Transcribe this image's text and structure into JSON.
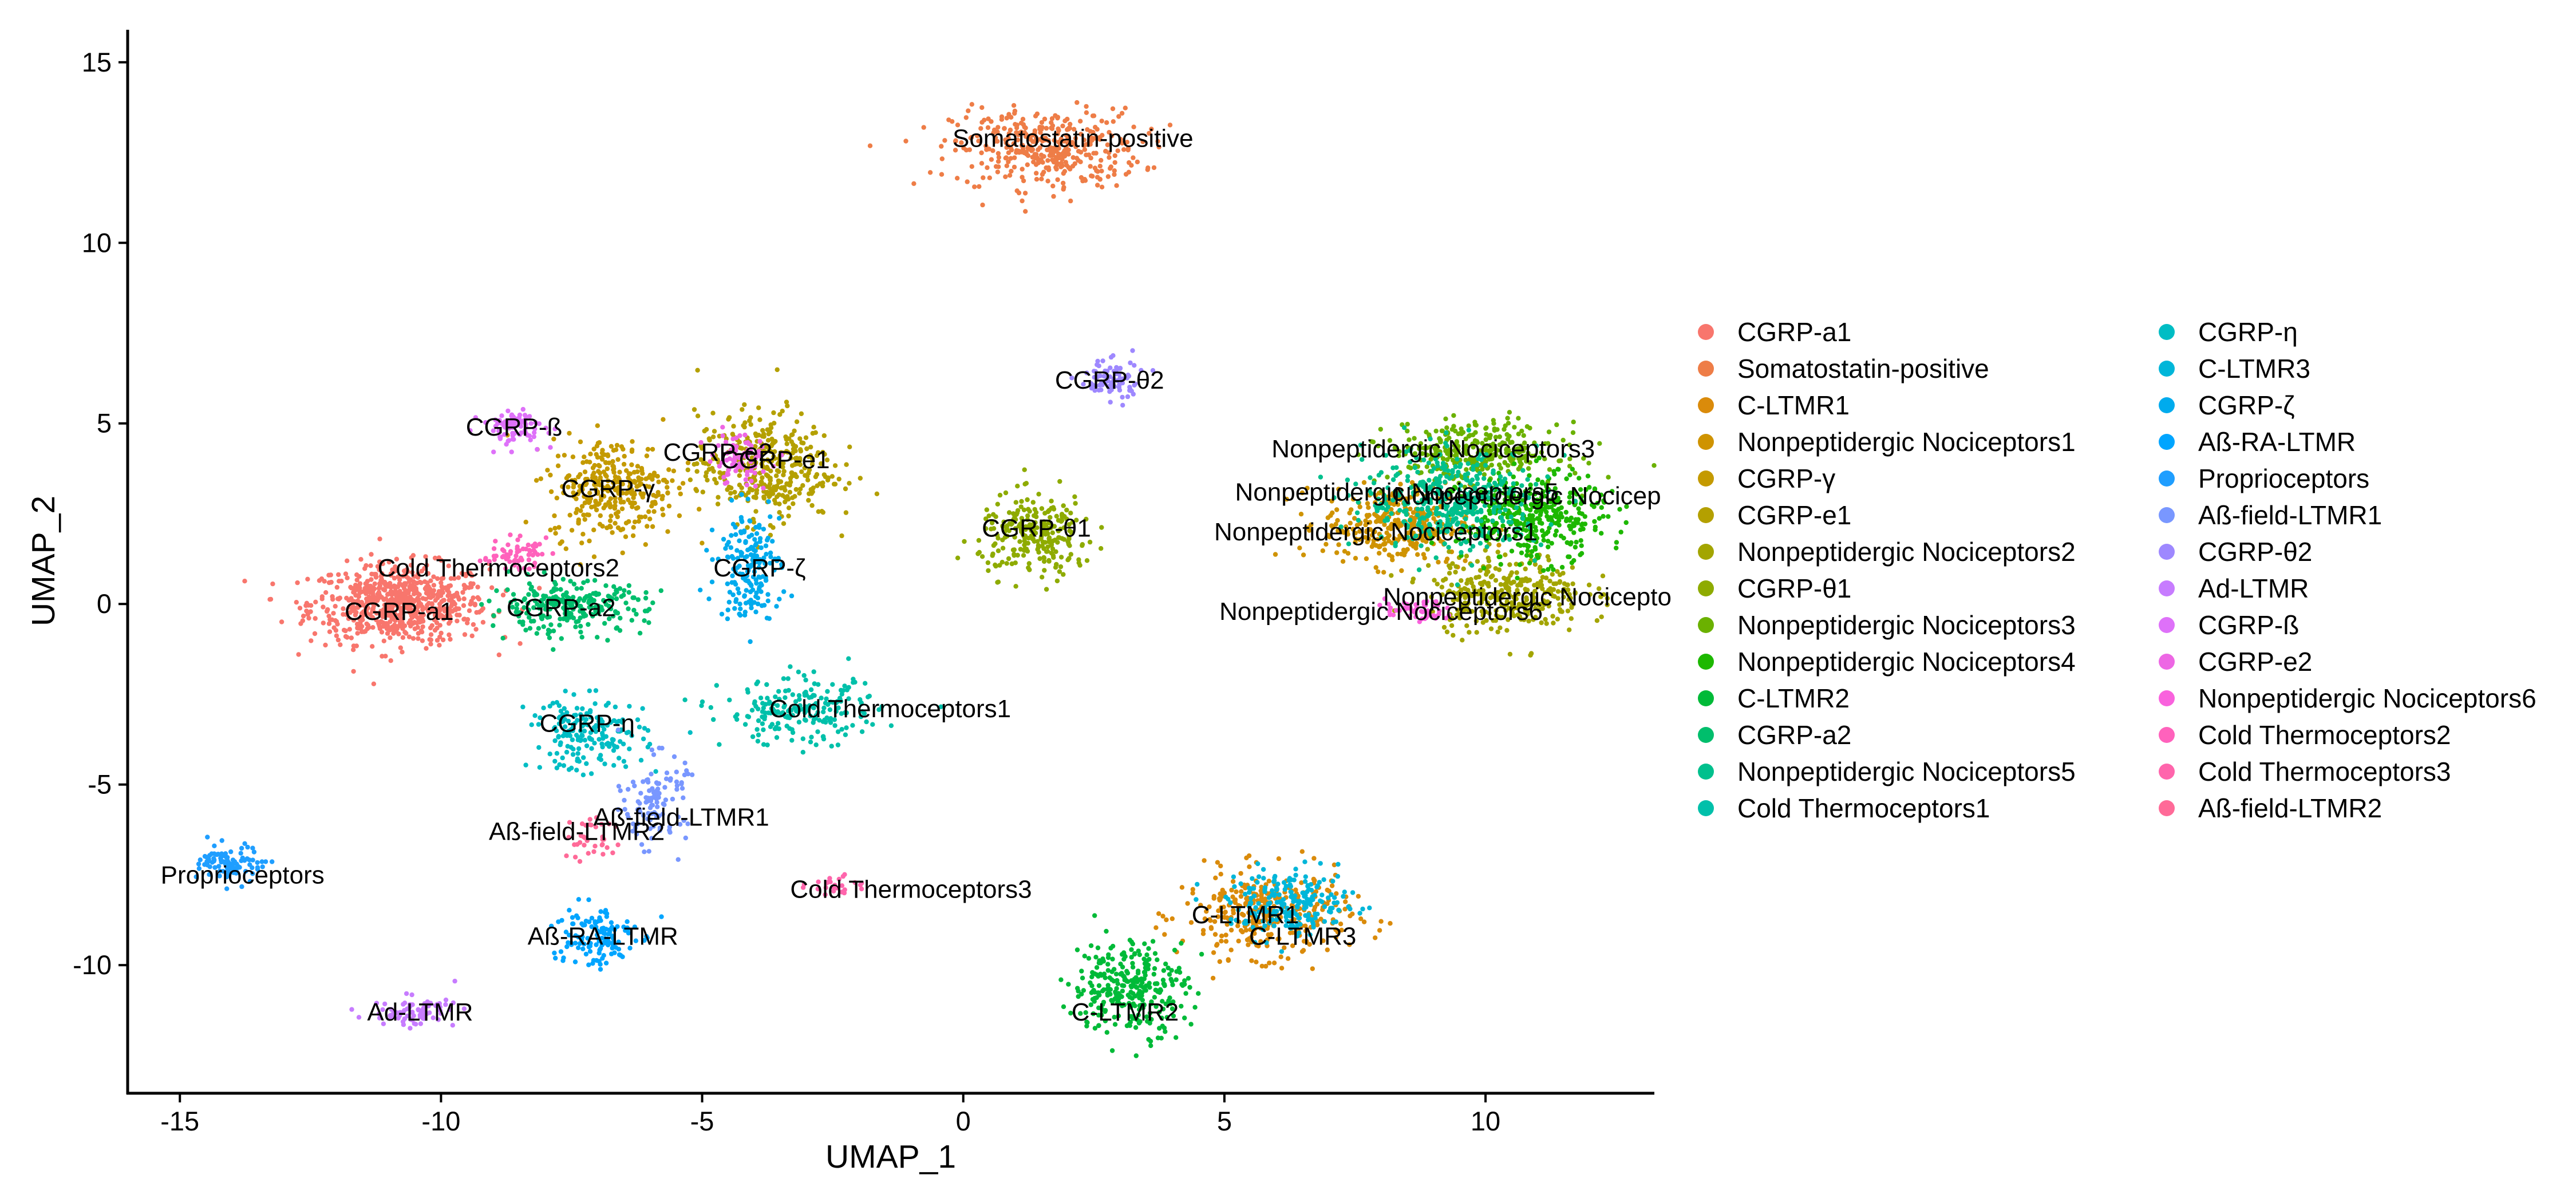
{
  "chart_data": {
    "type": "scatter",
    "title": "",
    "xlabel": "UMAP_1",
    "ylabel": "UMAP_2",
    "xlim": [
      -16.0,
      13.2
    ],
    "ylim": [
      -13.5,
      15.9
    ],
    "xticks": [
      -15,
      -10,
      -5,
      0,
      5,
      10
    ],
    "yticks": [
      -10,
      -5,
      0,
      5,
      10,
      15
    ],
    "grid": false,
    "legend_position": "right",
    "legend_columns": 2,
    "clusters": [
      {
        "name": "CGRP-a1",
        "color": "#F8766D",
        "cx": -10.8,
        "cy": 0.0,
        "sx": 0.85,
        "sy": 0.55,
        "n": 700
      },
      {
        "name": "Somatostatin-positive",
        "color": "#EE7D47",
        "cx": 1.6,
        "cy": 12.6,
        "sx": 0.9,
        "sy": 0.55,
        "n": 380
      },
      {
        "name": "C-LTMR1",
        "color": "#DA8B0B",
        "cx": 5.8,
        "cy": -8.6,
        "sx": 0.8,
        "sy": 0.6,
        "n": 330
      },
      {
        "name": "Nonpeptidergic Nociceptors1",
        "color": "#CF9300",
        "cx": 8.3,
        "cy": 2.2,
        "sx": 0.7,
        "sy": 0.55,
        "n": 320
      },
      {
        "name": "CGRP-γ",
        "color": "#C49A00",
        "cx": -6.7,
        "cy": 3.2,
        "sx": 0.6,
        "sy": 0.7,
        "n": 320
      },
      {
        "name": "CGRP-e1",
        "color": "#B4A000",
        "cx": -3.8,
        "cy": 3.8,
        "sx": 0.65,
        "sy": 0.75,
        "n": 380
      },
      {
        "name": "Nonpeptidergic Nociceptors2",
        "color": "#A3A500",
        "cx": 10.4,
        "cy": 0.3,
        "sx": 0.75,
        "sy": 0.55,
        "n": 330
      },
      {
        "name": "CGRP-θ1",
        "color": "#8EAB00",
        "cx": 1.4,
        "cy": 1.9,
        "sx": 0.55,
        "sy": 0.55,
        "n": 260
      },
      {
        "name": "Nonpeptidergic Nociceptors3",
        "color": "#6BB100",
        "cx": 9.8,
        "cy": 4.2,
        "sx": 0.8,
        "sy": 0.4,
        "n": 320
      },
      {
        "name": "Nonpeptidergic Nociceptors4",
        "color": "#1DB800",
        "cx": 10.9,
        "cy": 2.4,
        "sx": 0.7,
        "sy": 0.6,
        "n": 380
      },
      {
        "name": "C-LTMR2",
        "color": "#00BA38",
        "cx": 3.2,
        "cy": -10.6,
        "sx": 0.55,
        "sy": 0.65,
        "n": 300
      },
      {
        "name": "CGRP-a2",
        "color": "#00BE6C",
        "cx": -7.6,
        "cy": -0.1,
        "sx": 0.75,
        "sy": 0.35,
        "n": 250
      },
      {
        "name": "Nonpeptidergic Nociceptors5",
        "color": "#00C08D",
        "cx": 9.4,
        "cy": 2.9,
        "sx": 0.85,
        "sy": 0.7,
        "n": 380
      },
      {
        "name": "Cold Thermoceptors1",
        "color": "#00C0AA",
        "cx": -3.1,
        "cy": -3.0,
        "sx": 0.75,
        "sy": 0.45,
        "n": 210
      },
      {
        "name": "CGRP-η",
        "color": "#00BDC4",
        "cx": -7.2,
        "cy": -3.6,
        "sx": 0.55,
        "sy": 0.5,
        "n": 180
      },
      {
        "name": "C-LTMR3",
        "color": "#00B6D9",
        "cx": 6.3,
        "cy": -8.3,
        "sx": 0.6,
        "sy": 0.45,
        "n": 210
      },
      {
        "name": "CGRP-ζ",
        "color": "#00ABED",
        "cx": -4.1,
        "cy": 1.1,
        "sx": 0.3,
        "sy": 0.75,
        "n": 180
      },
      {
        "name": "Aß-RA-LTMR",
        "color": "#00A5FF",
        "cx": -7.1,
        "cy": -9.2,
        "sx": 0.4,
        "sy": 0.45,
        "n": 130
      },
      {
        "name": "Proprioceptors",
        "color": "#1F9EFF",
        "cx": -14.0,
        "cy": -7.2,
        "sx": 0.3,
        "sy": 0.25,
        "n": 100
      },
      {
        "name": "Aß-field-LTMR1",
        "color": "#7997FF",
        "cx": -5.9,
        "cy": -5.4,
        "sx": 0.3,
        "sy": 0.6,
        "n": 110
      },
      {
        "name": "CGRP-θ2",
        "color": "#9E88FF",
        "cx": 2.8,
        "cy": 6.2,
        "sx": 0.3,
        "sy": 0.3,
        "n": 80
      },
      {
        "name": "Ad-LTMR",
        "color": "#C77CFF",
        "cx": -10.5,
        "cy": -11.3,
        "sx": 0.4,
        "sy": 0.2,
        "n": 80
      },
      {
        "name": "CGRP-ß",
        "color": "#DE71F9",
        "cx": -8.6,
        "cy": 4.9,
        "sx": 0.3,
        "sy": 0.25,
        "n": 80
      },
      {
        "name": "CGRP-e2",
        "color": "#ED67E4",
        "cx": -4.3,
        "cy": 4.0,
        "sx": 0.3,
        "sy": 0.35,
        "n": 80
      },
      {
        "name": "Nonpeptidergic Nociceptors6",
        "color": "#F962DD",
        "cx": 8.7,
        "cy": -0.2,
        "sx": 0.3,
        "sy": 0.15,
        "n": 50
      },
      {
        "name": "Cold Thermoceptors2",
        "color": "#FF62BC",
        "cx": -8.6,
        "cy": 1.4,
        "sx": 0.3,
        "sy": 0.2,
        "n": 60
      },
      {
        "name": "Cold Thermoceptors3",
        "color": "#FF65AC",
        "cx": -2.5,
        "cy": -7.8,
        "sx": 0.25,
        "sy": 0.15,
        "n": 25
      },
      {
        "name": "Aß-field-LTMR2",
        "color": "#FF6A98",
        "cx": -7.1,
        "cy": -6.5,
        "sx": 0.25,
        "sy": 0.4,
        "n": 35
      }
    ],
    "annotations": [
      {
        "text": "Somatostatin-positive",
        "x": 2.1,
        "y": 12.9
      },
      {
        "text": "CGRP-θ2",
        "x": 2.8,
        "y": 6.2
      },
      {
        "text": "CGRP-ß",
        "x": -8.6,
        "y": 4.9
      },
      {
        "text": "CGRP-e2",
        "x": -4.7,
        "y": 4.2
      },
      {
        "text": "CGRP-e1",
        "x": -3.6,
        "y": 4.0
      },
      {
        "text": "CGRP-γ",
        "x": -6.8,
        "y": 3.2
      },
      {
        "text": "CGRP-θ1",
        "x": 1.4,
        "y": 2.1
      },
      {
        "text": "Cold Thermoceptors2",
        "x": -8.9,
        "y": 1.0
      },
      {
        "text": "CGRP-ζ",
        "x": -3.9,
        "y": 1.0
      },
      {
        "text": "CGRP-a2",
        "x": -7.7,
        "y": -0.1
      },
      {
        "text": "CGRP-a1",
        "x": -10.8,
        "y": -0.2
      },
      {
        "text": "Cold Thermoceptors1",
        "x": -1.4,
        "y": -2.9
      },
      {
        "text": "CGRP-η",
        "x": -7.2,
        "y": -3.3
      },
      {
        "text": "Aß-field-LTMR1",
        "x": -5.4,
        "y": -5.9
      },
      {
        "text": "Aß-field-LTMR2",
        "x": -7.4,
        "y": -6.3
      },
      {
        "text": "Proprioceptors",
        "x": -13.8,
        "y": -7.5
      },
      {
        "text": "Cold Thermoceptors3",
        "x": -1.0,
        "y": -7.9
      },
      {
        "text": "Aß-RA-LTMR",
        "x": -6.9,
        "y": -9.2
      },
      {
        "text": "Ad-LTMR",
        "x": -10.4,
        "y": -11.3
      },
      {
        "text": "C-LTMR1",
        "x": 5.4,
        "y": -8.6
      },
      {
        "text": "C-LTMR3",
        "x": 6.5,
        "y": -9.2
      },
      {
        "text": "C-LTMR2",
        "x": 3.1,
        "y": -11.3
      },
      {
        "text": "Nonpeptidergic Nociceptors3",
        "x": 9.0,
        "y": 4.3
      },
      {
        "text": "Nonpeptidergic Nociceptors5",
        "x": 8.3,
        "y": 3.1
      },
      {
        "text": "Nonpeptidergic Nocicep",
        "x": 10.8,
        "y": 3.0
      },
      {
        "text": "Nonpeptidergic Nociceptors1",
        "x": 7.9,
        "y": 2.0
      },
      {
        "text": "Nonpeptidergic Nocicepto",
        "x": 10.8,
        "y": 0.2
      },
      {
        "text": "Nonpeptidergic Nociceptors6",
        "x": 8.0,
        "y": -0.2
      }
    ]
  }
}
